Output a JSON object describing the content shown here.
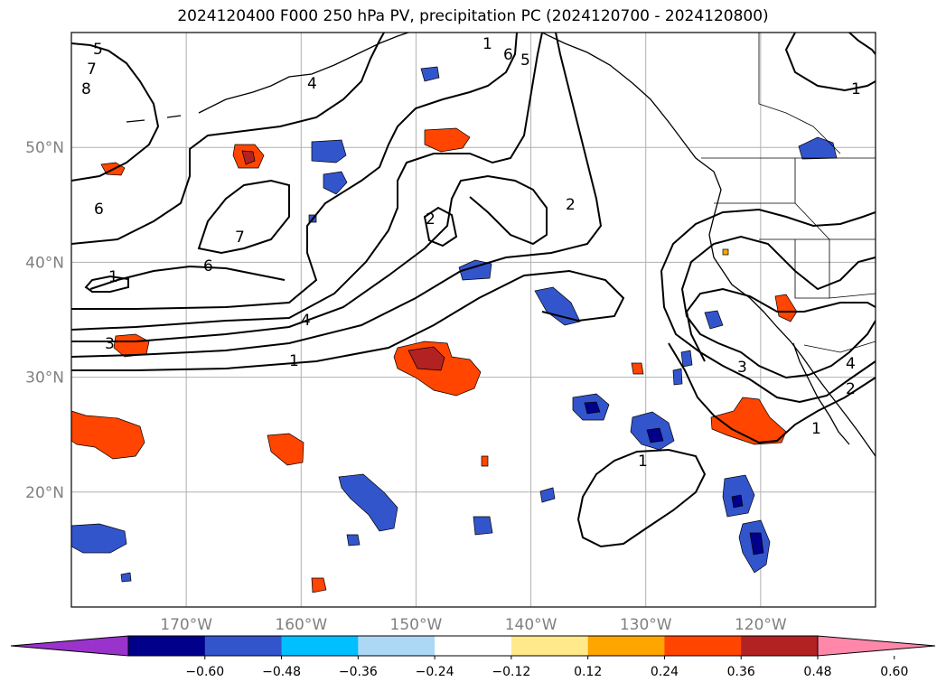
{
  "title": "2024120400 F000 250 hPa PV, precipitation PC (2024120700 - 2024120800)",
  "map": {
    "lon_range": [
      -180,
      -110
    ],
    "lat_range": [
      10,
      60
    ],
    "lat_labels": [
      {
        "value": 20,
        "text": "20°N"
      },
      {
        "value": 30,
        "text": "30°N"
      },
      {
        "value": 40,
        "text": "40°N"
      },
      {
        "value": 50,
        "text": "50°N"
      }
    ],
    "lon_labels": [
      {
        "value": -170,
        "text": "170°W"
      },
      {
        "value": -160,
        "text": "160°W"
      },
      {
        "value": -150,
        "text": "150°W"
      },
      {
        "value": -140,
        "text": "140°W"
      },
      {
        "value": -130,
        "text": "130°W"
      },
      {
        "value": -120,
        "text": "120°W"
      }
    ],
    "grid": true,
    "contour_labels": [
      "5",
      "7",
      "8",
      "6",
      "7",
      "1",
      "6",
      "4",
      "3",
      "1",
      "2",
      "2",
      "6",
      "5",
      "1",
      "4",
      "3",
      "4",
      "2",
      "1",
      "1",
      "1"
    ]
  },
  "colorbar": {
    "ticks": [
      "−0.60",
      "−0.48",
      "−0.36",
      "−0.24",
      "−0.12",
      "0.12",
      "0.24",
      "0.36",
      "0.48",
      "0.60"
    ],
    "colors": [
      "#9933cc",
      "#00008b",
      "#3355cc",
      "#00bfff",
      "#add8f5",
      "#ffffff",
      "#ffe98a",
      "#ffa500",
      "#ff4500",
      "#b22222",
      "#ff88aa"
    ]
  },
  "colors": {
    "neg_strong": "#00008b",
    "neg_mid": "#3355cc",
    "neg_light": "#00bfff",
    "neg_faint": "#add8f5",
    "pos_faint": "#ffe98a",
    "pos_light": "#ffa500",
    "pos_mid": "#ff4500",
    "pos_strong": "#b22222"
  }
}
